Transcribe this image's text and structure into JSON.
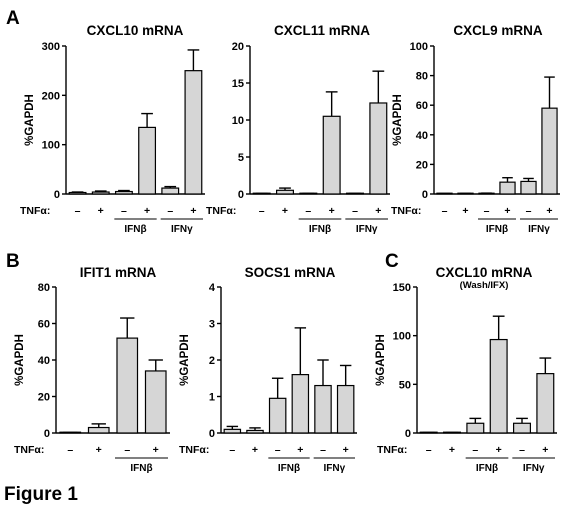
{
  "figure_label": "Figure 1",
  "panel_labels": [
    "A",
    "B",
    "C"
  ],
  "condition_row_label": "TNFα:",
  "chart_data": [
    {
      "type": "bar",
      "title": "CXCL10 mRNA",
      "ylabel": "%GAPDH",
      "ylim": [
        0,
        300
      ],
      "yticks": [
        0,
        100,
        200,
        300
      ],
      "categories": [
        "–",
        "+",
        "–",
        "+",
        "–",
        "+"
      ],
      "values": [
        3,
        4,
        5,
        135,
        12,
        250
      ],
      "errors": [
        1,
        2,
        2,
        28,
        3,
        42
      ],
      "groups": [
        {
          "label": "IFNβ",
          "from": 2,
          "to": 3
        },
        {
          "label": "IFNγ",
          "from": 4,
          "to": 5
        }
      ]
    },
    {
      "type": "bar",
      "title": "CXCL11 mRNA",
      "ylabel": "",
      "ylim": [
        0,
        20
      ],
      "yticks": [
        0,
        5,
        10,
        15,
        20
      ],
      "categories": [
        "–",
        "+",
        "–",
        "+",
        "–",
        "+"
      ],
      "values": [
        0.05,
        0.5,
        0.05,
        10.5,
        0.05,
        12.3
      ],
      "errors": [
        0.03,
        0.3,
        0.03,
        3.3,
        0.03,
        4.3
      ],
      "groups": [
        {
          "label": "IFNβ",
          "from": 2,
          "to": 3
        },
        {
          "label": "IFNγ",
          "from": 4,
          "to": 5
        }
      ]
    },
    {
      "type": "bar",
      "title": "CXCL9 mRNA",
      "ylabel": "%GAPDH",
      "ylim": [
        0,
        100
      ],
      "yticks": [
        0,
        20,
        40,
        60,
        80,
        100
      ],
      "categories": [
        "–",
        "+",
        "–",
        "+",
        "–",
        "+"
      ],
      "values": [
        0.2,
        0.3,
        0.4,
        8,
        8.5,
        58
      ],
      "errors": [
        0.1,
        0.1,
        0.2,
        3,
        2,
        21
      ],
      "groups": [
        {
          "label": "IFNβ",
          "from": 2,
          "to": 3
        },
        {
          "label": "IFNγ",
          "from": 4,
          "to": 5
        }
      ]
    },
    {
      "type": "bar",
      "title": "IFIT1 mRNA",
      "ylabel": "%GAPDH",
      "ylim": [
        0,
        80
      ],
      "yticks": [
        0,
        20,
        40,
        60,
        80
      ],
      "categories": [
        "–",
        "+",
        "–",
        "+"
      ],
      "values": [
        0.2,
        3,
        52,
        34
      ],
      "errors": [
        0.1,
        2,
        11,
        6
      ],
      "groups": [
        {
          "label": "IFNβ",
          "from": 2,
          "to": 3
        }
      ]
    },
    {
      "type": "bar",
      "title": "SOCS1 mRNA",
      "ylabel": "%GAPDH",
      "ylim": [
        0,
        4
      ],
      "yticks": [
        0,
        1,
        2,
        3,
        4
      ],
      "categories": [
        "–",
        "+",
        "–",
        "+",
        "–",
        "+"
      ],
      "values": [
        0.1,
        0.07,
        0.95,
        1.6,
        1.3,
        1.3
      ],
      "errors": [
        0.08,
        0.07,
        0.55,
        1.28,
        0.7,
        0.55
      ],
      "groups": [
        {
          "label": "IFNβ",
          "from": 2,
          "to": 3
        },
        {
          "label": "IFNγ",
          "from": 4,
          "to": 5
        }
      ]
    },
    {
      "type": "bar",
      "title": "CXCL10 mRNA",
      "subtitle": "(Wash/IFX)",
      "ylabel": "%GAPDH",
      "ylim": [
        0,
        150
      ],
      "yticks": [
        0,
        50,
        100,
        150
      ],
      "categories": [
        "–",
        "+",
        "–",
        "+",
        "–",
        "+"
      ],
      "values": [
        0.3,
        0.3,
        10,
        96,
        10,
        61
      ],
      "errors": [
        0.2,
        0.2,
        5,
        24,
        5,
        16
      ],
      "groups": [
        {
          "label": "IFNβ",
          "from": 2,
          "to": 3
        },
        {
          "label": "IFNγ",
          "from": 4,
          "to": 5
        }
      ]
    }
  ]
}
